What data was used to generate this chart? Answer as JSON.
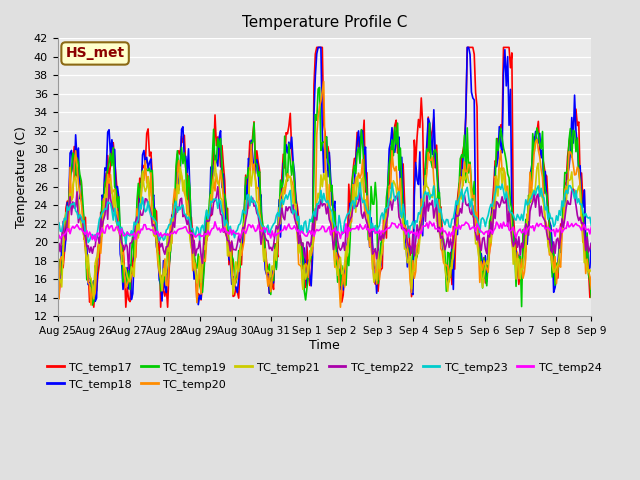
{
  "title": "Temperature Profile C",
  "xlabel": "Time",
  "ylabel": "Temperature (C)",
  "ylim": [
    12,
    42
  ],
  "yticks": [
    12,
    14,
    16,
    18,
    20,
    22,
    24,
    26,
    28,
    30,
    32,
    34,
    36,
    38,
    40,
    42
  ],
  "annotation_text": "HS_met",
  "annotation_color": "#8B0000",
  "annotation_bg": "#FFFFCC",
  "annotation_border": "#8B6914",
  "colors": {
    "TC_temp17": "#FF0000",
    "TC_temp18": "#0000FF",
    "TC_temp19": "#00CC00",
    "TC_temp20": "#FF8C00",
    "TC_temp21": "#CCCC00",
    "TC_temp22": "#AA00AA",
    "TC_temp23": "#00CCCC",
    "TC_temp24": "#FF00FF"
  },
  "series_names": [
    "TC_temp17",
    "TC_temp18",
    "TC_temp19",
    "TC_temp20",
    "TC_temp21",
    "TC_temp22",
    "TC_temp23",
    "TC_temp24"
  ],
  "x_tick_positions": [
    0,
    1,
    2,
    3,
    4,
    5,
    6,
    7,
    8,
    9,
    10,
    11,
    12,
    13,
    14,
    15
  ],
  "x_tick_labels": [
    "Aug 25",
    "Aug 26",
    "Aug 27",
    "Aug 28",
    "Aug 29",
    "Aug 30",
    "Aug 31",
    "Sep 1",
    "Sep 2",
    "Sep 3",
    "Sep 4",
    "Sep 5",
    "Sep 6",
    "Sep 7",
    "Sep 8",
    "Sep 9"
  ],
  "n_points": 384,
  "bg_color": "#E0E0E0",
  "plot_bg": "#EBEBEB",
  "linewidth": 1.2
}
